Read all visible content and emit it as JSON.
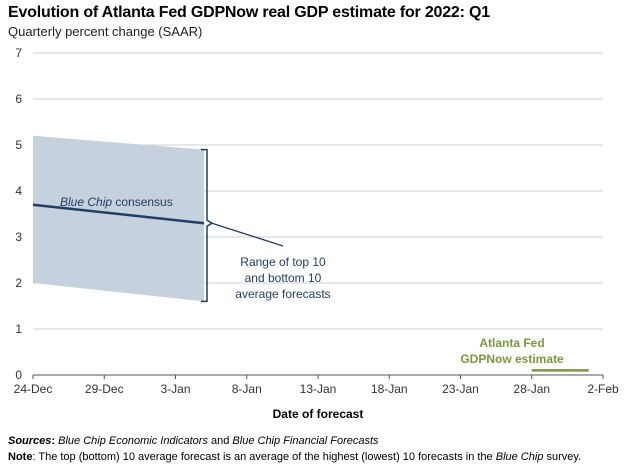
{
  "chart_data": {
    "type": "area",
    "title": "Evolution of Atlanta Fed GDPNow real GDP estimate for 2022: Q1",
    "subtitle": "Quarterly percent change (SAAR)",
    "xlabel": "Date of forecast",
    "ylabel": "",
    "ylim": [
      0,
      7
    ],
    "yticks": [
      0,
      1,
      2,
      3,
      4,
      5,
      6,
      7
    ],
    "xlim": [
      "2021-12-24",
      "2022-02-02"
    ],
    "xticks": [
      "24-Dec",
      "29-Dec",
      "3-Jan",
      "8-Jan",
      "13-Jan",
      "18-Jan",
      "23-Jan",
      "28-Jan",
      "2-Feb"
    ],
    "grid": true,
    "series": [
      {
        "name": "Blue Chip consensus",
        "kind": "line",
        "color": "#1f3f66",
        "x": [
          "2021-12-24",
          "2022-01-05"
        ],
        "y": [
          3.7,
          3.3
        ]
      },
      {
        "name": "Range of top 10 and bottom 10 average forecasts",
        "kind": "band",
        "color": "#c5d1dc",
        "x": [
          "2021-12-24",
          "2022-01-05"
        ],
        "upper": [
          5.2,
          4.9
        ],
        "lower": [
          2.0,
          1.6
        ]
      },
      {
        "name": "Atlanta Fed GDPNow estimate",
        "kind": "line",
        "color": "#7a9a3a",
        "x": [
          "2022-01-28",
          "2022-02-01"
        ],
        "y": [
          0.1,
          0.1
        ]
      }
    ],
    "annotations": [
      {
        "text": "Blue Chip consensus",
        "italic_part": "Blue Chip",
        "color": "#1f3f66"
      },
      {
        "lines": [
          "Range of top 10",
          "and bottom 10",
          "average forecasts"
        ],
        "color": "#1f3f66"
      },
      {
        "lines": [
          "Atlanta Fed",
          "GDPNow estimate"
        ],
        "color": "#7a9a3a"
      }
    ]
  },
  "footer": {
    "sources_label": "Sources",
    "sources_text_1": "Blue Chip Economic Indicators",
    "sources_text_2": " and ",
    "sources_text_3": "Blue Chip Financial Forecasts",
    "note_label": "Note",
    "note_text_1": ": The top (bottom) 10 average forecast is an average of the highest (lowest) 10 forecasts in the ",
    "note_text_2": "Blue Chip",
    "note_text_3": " survey."
  }
}
